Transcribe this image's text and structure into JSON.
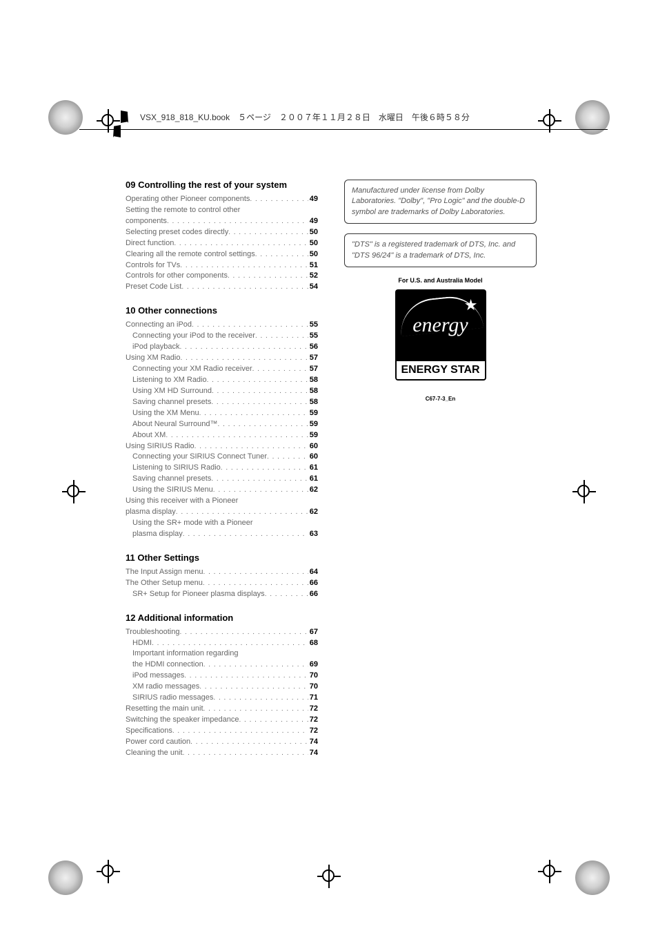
{
  "book_header": "VSX_918_818_KU.book　５ページ　２００７年１１月２８日　水曜日　午後６時５８分",
  "sections": {
    "s09": {
      "title": "09 Controlling the rest of your system",
      "items": [
        {
          "label": "Operating other Pioneer components",
          "page": "49",
          "indent": false
        },
        {
          "label": "Setting the remote to control other",
          "cont": "components",
          "page": "49",
          "indent": false
        },
        {
          "label": "Selecting preset codes directly",
          "page": "50",
          "indent": false
        },
        {
          "label": "Direct function",
          "page": "50",
          "indent": false
        },
        {
          "label": "Clearing all the remote control settings",
          "page": "50",
          "indent": false
        },
        {
          "label": "Controls for TVs",
          "page": "51",
          "indent": false
        },
        {
          "label": "Controls for other components",
          "page": "52",
          "indent": false
        },
        {
          "label": "Preset Code List",
          "page": "54",
          "indent": false
        }
      ]
    },
    "s10": {
      "title": "10 Other connections",
      "items": [
        {
          "label": "Connecting an iPod",
          "page": "55",
          "indent": false
        },
        {
          "label": "Connecting your iPod to the receiver",
          "page": "55",
          "indent": true
        },
        {
          "label": "iPod playback",
          "page": "56",
          "indent": true
        },
        {
          "label": "Using XM Radio",
          "page": "57",
          "indent": false
        },
        {
          "label": "Connecting your XM Radio receiver",
          "page": "57",
          "indent": true
        },
        {
          "label": "Listening to XM Radio",
          "page": "58",
          "indent": true
        },
        {
          "label": "Using XM HD Surround",
          "page": "58",
          "indent": true
        },
        {
          "label": "Saving channel presets",
          "page": "58",
          "indent": true
        },
        {
          "label": "Using the XM Menu",
          "page": "59",
          "indent": true
        },
        {
          "label": "About Neural Surround™",
          "page": "59",
          "indent": true
        },
        {
          "label": "About XM",
          "page": "59",
          "indent": true
        },
        {
          "label": "Using SIRIUS Radio",
          "page": "60",
          "indent": false
        },
        {
          "label": "Connecting your SIRIUS Connect Tuner",
          "page": "60",
          "indent": true
        },
        {
          "label": "Listening to SIRIUS Radio",
          "page": "61",
          "indent": true
        },
        {
          "label": "Saving channel presets",
          "page": "61",
          "indent": true
        },
        {
          "label": "Using the SIRIUS Menu",
          "page": "62",
          "indent": true
        },
        {
          "label": "Using this receiver with a Pioneer",
          "cont": "plasma display",
          "page": "62",
          "indent": false
        },
        {
          "label": "Using the SR+ mode with a Pioneer",
          "cont": "plasma display",
          "page": "63",
          "indent": true
        }
      ]
    },
    "s11": {
      "title": "11 Other Settings",
      "items": [
        {
          "label": "The Input Assign menu",
          "page": "64",
          "indent": false
        },
        {
          "label": "The Other Setup menu",
          "page": "66",
          "indent": false
        },
        {
          "label": "SR+ Setup for Pioneer plasma displays",
          "page": "66",
          "indent": true
        }
      ]
    },
    "s12": {
      "title": "12 Additional information",
      "items": [
        {
          "label": "Troubleshooting",
          "page": "67",
          "indent": false
        },
        {
          "label": "HDMI",
          "page": "68",
          "indent": true
        },
        {
          "label": "Important information regarding",
          "cont": "the HDMI connection",
          "page": "69",
          "indent": true
        },
        {
          "label": "iPod messages",
          "page": "70",
          "indent": true
        },
        {
          "label": "XM radio messages",
          "page": "70",
          "indent": true
        },
        {
          "label": "SIRIUS radio messages",
          "page": "71",
          "indent": true
        },
        {
          "label": "Resetting the main unit",
          "page": "72",
          "indent": false
        },
        {
          "label": "Switching the speaker impedance",
          "page": "72",
          "indent": false
        },
        {
          "label": "Specifications",
          "page": "72",
          "indent": false
        },
        {
          "label": "Power cord caution",
          "page": "74",
          "indent": false
        },
        {
          "label": "Cleaning the unit",
          "page": "74",
          "indent": false
        }
      ]
    }
  },
  "notices": {
    "dolby": "Manufactured under license from Dolby Laboratories. \"Dolby\", \"Pro Logic\" and the double-D symbol are trademarks of Dolby Laboratories.",
    "dts": "\"DTS\" is a registered trademark of DTS, Inc. and \"DTS 96/24\" is a trademark of DTS, Inc."
  },
  "model_note": "For U.S. and Australia Model",
  "energy_star": {
    "script": "energy",
    "label": "ENERGY STAR",
    "code": "C67-7-3_En"
  },
  "colors": {
    "text_primary": "#000000",
    "text_muted": "#666666",
    "background": "#ffffff"
  },
  "typography": {
    "section_title_size": 13,
    "toc_size": 11,
    "notice_size": 11
  }
}
